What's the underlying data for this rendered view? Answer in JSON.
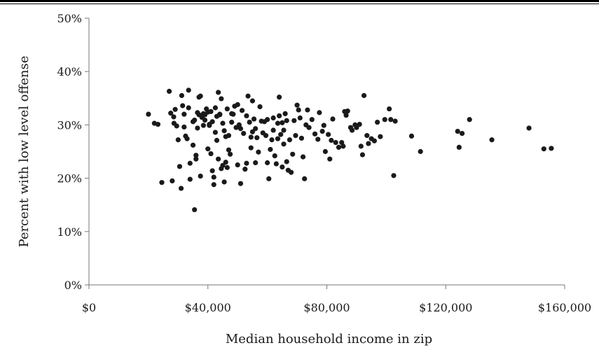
{
  "chart_data": {
    "type": "scatter",
    "title": "",
    "xlabel": "Median household income in zip",
    "ylabel": "Percent with low level offense",
    "xlim": [
      0,
      160000
    ],
    "ylim": [
      0,
      50
    ],
    "x_ticks": [
      0,
      40000,
      80000,
      120000,
      160000
    ],
    "x_tick_labels": [
      "$0",
      "$40,000",
      "$80,000",
      "$120,000",
      "$160,000"
    ],
    "y_ticks": [
      0,
      10,
      20,
      30,
      40,
      50
    ],
    "y_tick_labels": [
      "0%",
      "10%",
      "20%",
      "30%",
      "40%",
      "50%"
    ],
    "grid": false,
    "legend": "none",
    "marker_color": "#1a1a1a",
    "points": [
      [
        20000,
        32.0
      ],
      [
        22000,
        30.3
      ],
      [
        23200,
        30.1
      ],
      [
        24500,
        19.2
      ],
      [
        27000,
        36.3
      ],
      [
        27500,
        32.2
      ],
      [
        28000,
        19.5
      ],
      [
        28500,
        31.5
      ],
      [
        28600,
        30.3
      ],
      [
        29000,
        32.9
      ],
      [
        29500,
        29.8
      ],
      [
        30000,
        27.2
      ],
      [
        30500,
        22.2
      ],
      [
        31000,
        18.1
      ],
      [
        31200,
        35.5
      ],
      [
        31500,
        33.6
      ],
      [
        32000,
        29.6
      ],
      [
        32000,
        32.0
      ],
      [
        32500,
        27.9
      ],
      [
        33000,
        27.4
      ],
      [
        33500,
        36.5
      ],
      [
        33500,
        33.2
      ],
      [
        34000,
        22.8
      ],
      [
        34000,
        19.8
      ],
      [
        35000,
        30.6
      ],
      [
        35000,
        26.2
      ],
      [
        35500,
        14.1
      ],
      [
        35500,
        30.9
      ],
      [
        36000,
        24.3
      ],
      [
        36000,
        23.6
      ],
      [
        36500,
        32.3
      ],
      [
        36500,
        29.4
      ],
      [
        37000,
        35.2
      ],
      [
        37000,
        31.9
      ],
      [
        37500,
        35.4
      ],
      [
        37500,
        20.4
      ],
      [
        38000,
        31.4
      ],
      [
        38500,
        29.9
      ],
      [
        38500,
        32.1
      ],
      [
        39000,
        31.9
      ],
      [
        39000,
        30.9
      ],
      [
        39500,
        33.0
      ],
      [
        40000,
        32.4
      ],
      [
        40000,
        25.5
      ],
      [
        40500,
        30.1
      ],
      [
        40500,
        29.9
      ],
      [
        41000,
        32.5
      ],
      [
        41000,
        24.6
      ],
      [
        41500,
        30.6
      ],
      [
        41500,
        21.4
      ],
      [
        42000,
        20.2
      ],
      [
        42000,
        18.8
      ],
      [
        42500,
        33.2
      ],
      [
        42500,
        28.6
      ],
      [
        43000,
        31.6
      ],
      [
        43000,
        27.1
      ],
      [
        43500,
        36.1
      ],
      [
        43500,
        23.6
      ],
      [
        44000,
        32.0
      ],
      [
        44000,
        31.9
      ],
      [
        44500,
        34.9
      ],
      [
        44500,
        21.8
      ],
      [
        45000,
        30.3
      ],
      [
        45000,
        22.4
      ],
      [
        45500,
        28.9
      ],
      [
        45500,
        19.3
      ],
      [
        46000,
        27.8
      ],
      [
        46000,
        23.0
      ],
      [
        46500,
        33.0
      ],
      [
        46500,
        22.0
      ],
      [
        47000,
        25.3
      ],
      [
        47000,
        28.0
      ],
      [
        47500,
        24.5
      ],
      [
        48000,
        32.1
      ],
      [
        48000,
        30.5
      ],
      [
        48500,
        32.0
      ],
      [
        49000,
        33.5
      ],
      [
        49500,
        29.5
      ],
      [
        50000,
        33.8
      ],
      [
        50000,
        22.5
      ],
      [
        50500,
        30.0
      ],
      [
        51000,
        19.0
      ],
      [
        51000,
        29.3
      ],
      [
        51500,
        32.7
      ],
      [
        52000,
        28.4
      ],
      [
        52500,
        21.7
      ],
      [
        53000,
        22.8
      ],
      [
        53000,
        31.7
      ],
      [
        53500,
        35.4
      ],
      [
        54000,
        30.5
      ],
      [
        54500,
        27.7
      ],
      [
        54500,
        25.7
      ],
      [
        55000,
        34.5
      ],
      [
        55000,
        28.7
      ],
      [
        55500,
        31.1
      ],
      [
        56000,
        29.3
      ],
      [
        56000,
        22.9
      ],
      [
        56500,
        27.6
      ],
      [
        57000,
        24.9
      ],
      [
        57500,
        33.4
      ],
      [
        58000,
        30.7
      ],
      [
        58500,
        28.5
      ],
      [
        59000,
        30.6
      ],
      [
        59500,
        28.0
      ],
      [
        60000,
        31.0
      ],
      [
        60000,
        22.9
      ],
      [
        60500,
        19.9
      ],
      [
        61000,
        25.4
      ],
      [
        61500,
        27.2
      ],
      [
        62000,
        31.3
      ],
      [
        62000,
        29.0
      ],
      [
        62500,
        24.2
      ],
      [
        63000,
        22.7
      ],
      [
        63500,
        30.3
      ],
      [
        63500,
        27.4
      ],
      [
        64000,
        35.2
      ],
      [
        64000,
        31.7
      ],
      [
        64500,
        28.2
      ],
      [
        65000,
        30.4
      ],
      [
        65000,
        22.1
      ],
      [
        65500,
        29.0
      ],
      [
        65500,
        26.4
      ],
      [
        66000,
        32.1
      ],
      [
        66500,
        30.8
      ],
      [
        66500,
        23.1
      ],
      [
        67000,
        21.5
      ],
      [
        67500,
        27.2
      ],
      [
        68000,
        21.1
      ],
      [
        68500,
        24.5
      ],
      [
        69000,
        30.8
      ],
      [
        69500,
        28.0
      ],
      [
        70000,
        33.7
      ],
      [
        70500,
        32.8
      ],
      [
        71000,
        31.3
      ],
      [
        71500,
        27.5
      ],
      [
        72000,
        24.0
      ],
      [
        72500,
        19.9
      ],
      [
        73000,
        30.0
      ],
      [
        73500,
        32.8
      ],
      [
        74000,
        29.5
      ],
      [
        75000,
        31.0
      ],
      [
        76000,
        28.3
      ],
      [
        77000,
        27.3
      ],
      [
        77500,
        32.3
      ],
      [
        78500,
        28.8
      ],
      [
        79000,
        29.9
      ],
      [
        79500,
        25.0
      ],
      [
        80500,
        28.2
      ],
      [
        81000,
        23.6
      ],
      [
        81500,
        27.1
      ],
      [
        82000,
        31.1
      ],
      [
        83000,
        26.7
      ],
      [
        84000,
        25.8
      ],
      [
        85000,
        26.7
      ],
      [
        85500,
        26.0
      ],
      [
        86000,
        32.5
      ],
      [
        86500,
        31.8
      ],
      [
        87000,
        32.6
      ],
      [
        88000,
        29.5
      ],
      [
        88500,
        29.0
      ],
      [
        89500,
        30.0
      ],
      [
        90000,
        29.5
      ],
      [
        91000,
        30.1
      ],
      [
        91500,
        26.0
      ],
      [
        92000,
        24.4
      ],
      [
        92500,
        35.5
      ],
      [
        93500,
        28.0
      ],
      [
        94000,
        26.5
      ],
      [
        95000,
        27.4
      ],
      [
        96000,
        27.0
      ],
      [
        97000,
        30.5
      ],
      [
        98000,
        27.8
      ],
      [
        99500,
        31.0
      ],
      [
        101000,
        33.0
      ],
      [
        101500,
        31.0
      ],
      [
        102500,
        20.5
      ],
      [
        103000,
        30.7
      ],
      [
        108500,
        27.9
      ],
      [
        111500,
        25.0
      ],
      [
        124000,
        28.8
      ],
      [
        124500,
        25.8
      ],
      [
        125500,
        28.4
      ],
      [
        128000,
        31.0
      ],
      [
        135500,
        27.2
      ],
      [
        148000,
        29.4
      ],
      [
        153000,
        25.5
      ],
      [
        155500,
        25.6
      ]
    ]
  }
}
